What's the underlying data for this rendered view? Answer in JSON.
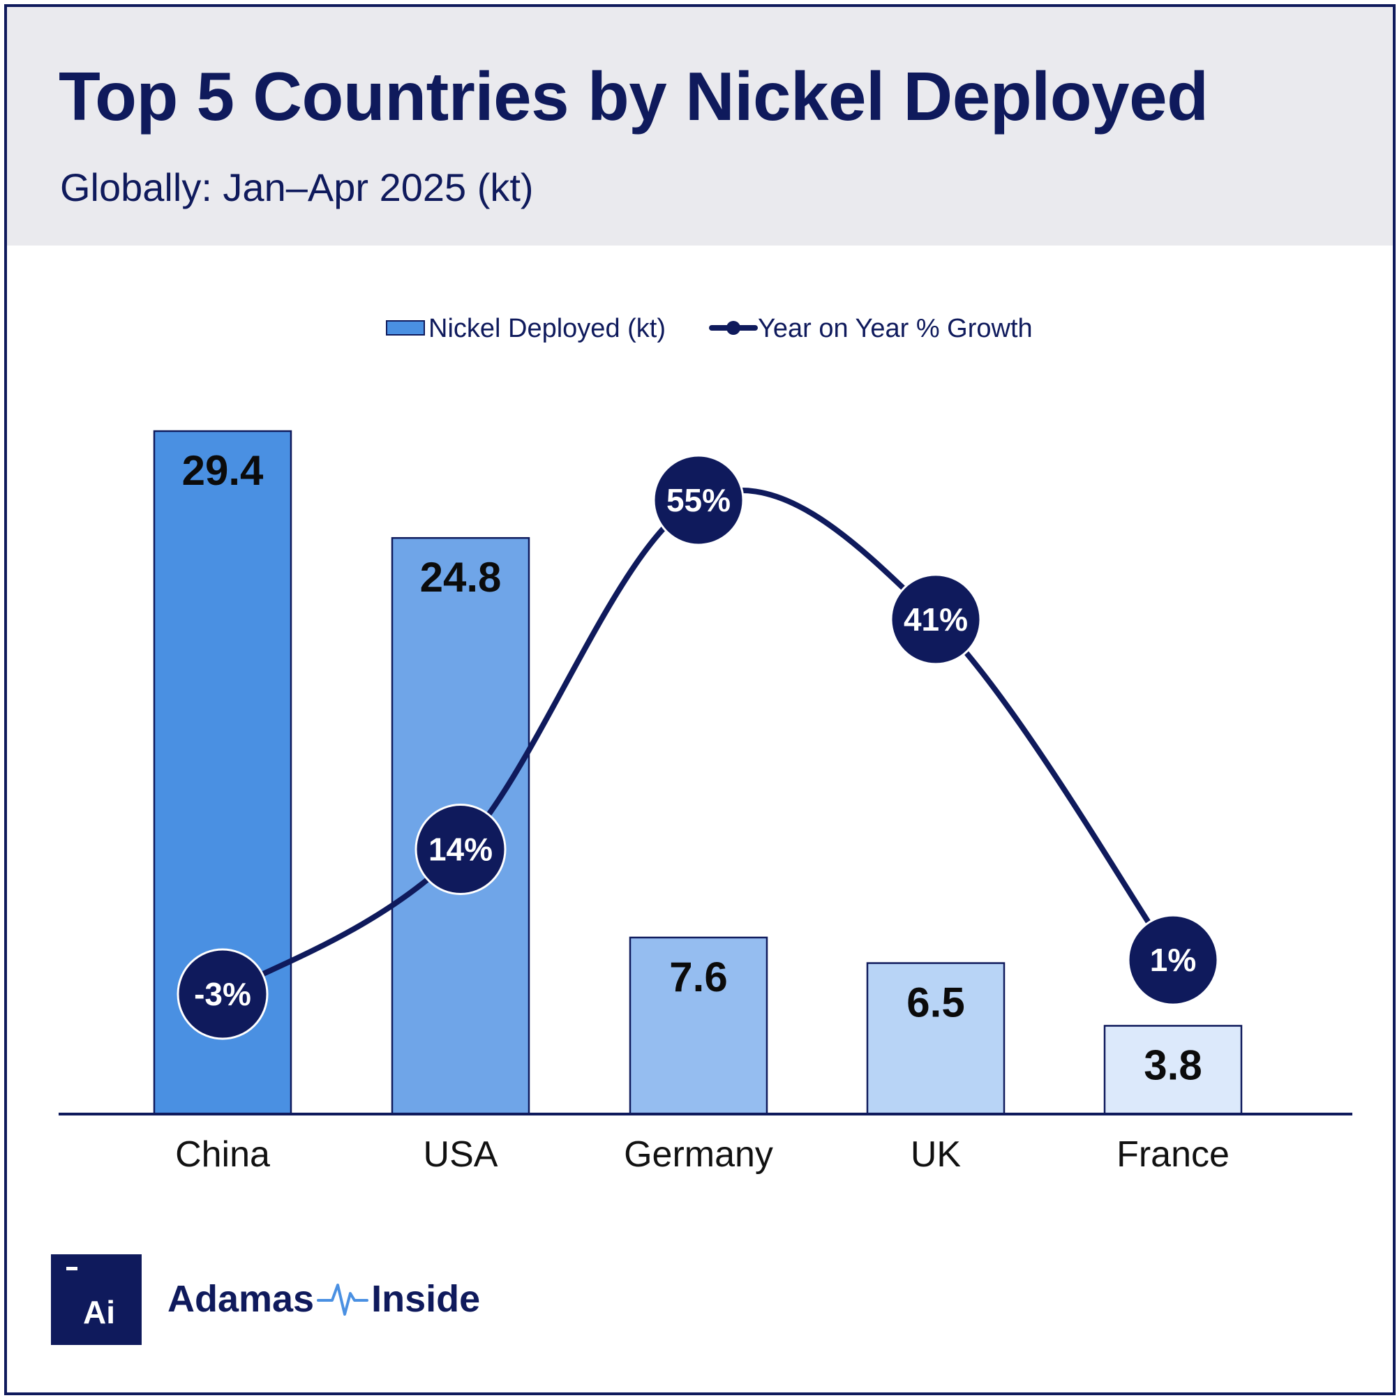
{
  "header": {
    "title": "Top 5 Countries by Nickel Deployed",
    "subtitle": "Globally: Jan–Apr 2025 (kt)"
  },
  "chart_data": {
    "type": "bar",
    "categories": [
      "China",
      "USA",
      "Germany",
      "UK",
      "France"
    ],
    "series": [
      {
        "name": "Nickel Deployed (kt)",
        "type": "bar",
        "values": [
          29.4,
          24.8,
          7.6,
          6.5,
          3.8
        ],
        "labels": [
          "29.4",
          "24.8",
          "7.6",
          "6.5",
          "3.8"
        ],
        "colors": [
          "#4a90e2",
          "#6fa5e8",
          "#95bdf0",
          "#b8d4f6",
          "#dce9fb"
        ]
      },
      {
        "name": "Year on Year % Growth",
        "type": "line",
        "values": [
          -3,
          14,
          55,
          41,
          1
        ],
        "labels": [
          "-3%",
          "14%",
          "55%",
          "41%",
          "1%"
        ],
        "color": "#0f1a5c"
      }
    ],
    "y_range": [
      0,
      29.4
    ],
    "y2_range": [
      -3,
      55
    ],
    "grid": false,
    "legend_position": "top-center"
  },
  "logo": {
    "box_text": "Ai",
    "brand_left": "Adamas",
    "brand_right": "Inside"
  },
  "colors": {
    "navy": "#0f1a5c",
    "header_bg": "#eaeaee"
  }
}
